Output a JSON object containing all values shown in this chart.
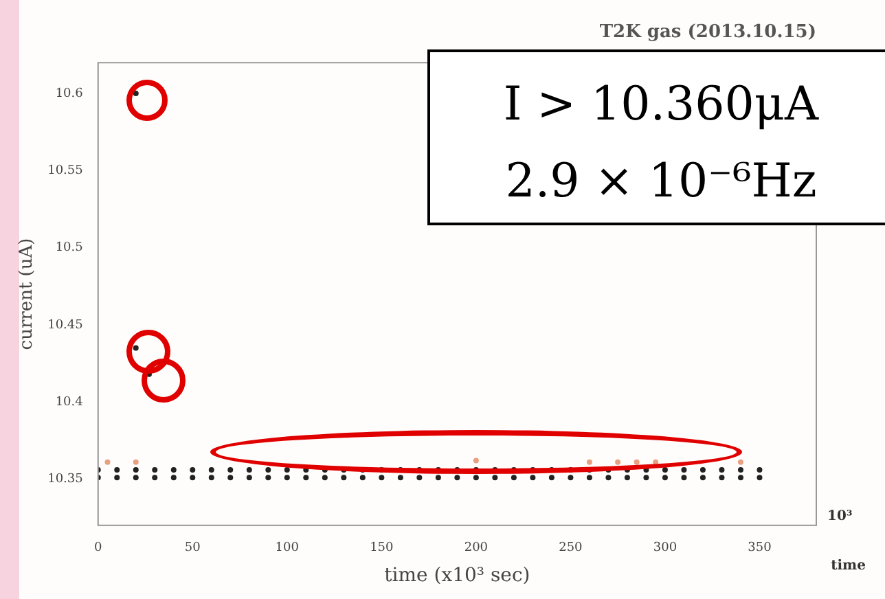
{
  "chart_data": {
    "type": "scatter",
    "title": "T2K gas (2013.10.15)",
    "xlabel": "time (x10³ sec)",
    "ylabel": "current (uA)",
    "xlim": [
      0,
      380
    ],
    "xticks": [
      0,
      50,
      100,
      150,
      200,
      250,
      300,
      350
    ],
    "ylim": [
      10.32,
      10.62
    ],
    "yticks": [
      10.35,
      10.4,
      10.45,
      10.5,
      10.55,
      10.6
    ],
    "grid": false,
    "legend": false,
    "marker": "circle",
    "annotations": [
      "I > 10.360μA",
      "2.9 × 10⁻⁶Hz",
      "time",
      "10³"
    ],
    "series": [
      {
        "color": "#222222",
        "x": [
          0,
          10,
          20,
          30,
          40,
          50,
          60,
          70,
          80,
          90,
          100,
          110,
          120,
          130,
          140,
          150,
          160,
          170,
          180,
          190,
          200,
          210,
          220,
          230,
          240,
          250,
          260,
          270,
          280,
          290,
          300,
          310,
          320,
          330,
          340,
          350,
          0,
          10,
          20,
          30,
          40,
          50,
          60,
          70,
          80,
          90,
          100,
          110,
          120,
          130,
          140,
          150,
          160,
          170,
          180,
          190,
          200,
          210,
          220,
          230,
          240,
          250,
          260,
          270,
          280,
          290,
          300,
          310,
          320,
          330,
          340,
          350,
          20,
          20,
          27
        ],
        "values": [
          10.356,
          10.356,
          10.356,
          10.356,
          10.356,
          10.356,
          10.356,
          10.356,
          10.356,
          10.356,
          10.356,
          10.356,
          10.356,
          10.356,
          10.356,
          10.356,
          10.356,
          10.356,
          10.356,
          10.356,
          10.356,
          10.356,
          10.356,
          10.356,
          10.356,
          10.356,
          10.356,
          10.356,
          10.356,
          10.356,
          10.356,
          10.356,
          10.356,
          10.356,
          10.356,
          10.356,
          10.351,
          10.351,
          10.351,
          10.351,
          10.351,
          10.351,
          10.351,
          10.351,
          10.351,
          10.351,
          10.351,
          10.351,
          10.351,
          10.351,
          10.351,
          10.351,
          10.351,
          10.351,
          10.351,
          10.351,
          10.351,
          10.351,
          10.351,
          10.351,
          10.351,
          10.351,
          10.351,
          10.351,
          10.351,
          10.351,
          10.351,
          10.351,
          10.351,
          10.351,
          10.351,
          10.351,
          10.6,
          10.435,
          10.418
        ]
      },
      {
        "color": "#e8a080",
        "x": [
          5,
          20,
          80,
          200,
          260,
          275,
          285,
          295,
          340
        ],
        "values": [
          10.361,
          10.361,
          null,
          10.362,
          10.361,
          10.361,
          10.361,
          10.361,
          10.361
        ]
      }
    ]
  }
}
